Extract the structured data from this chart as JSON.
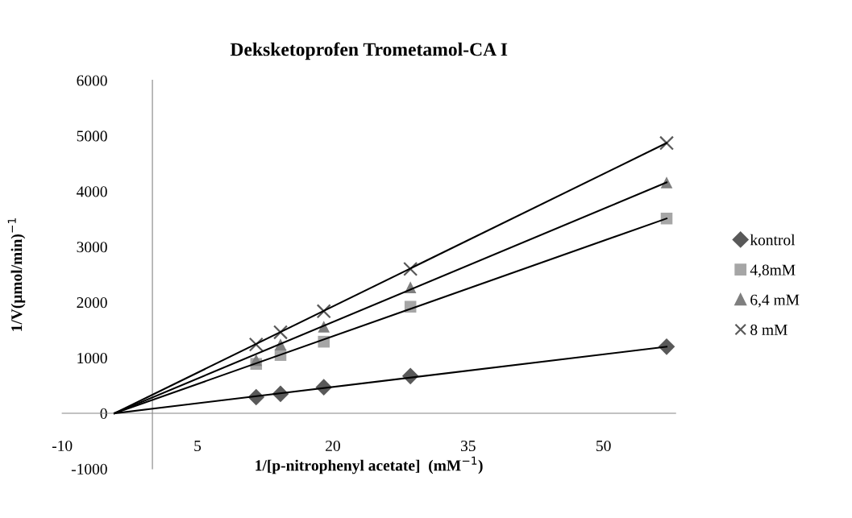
{
  "chart_data": {
    "type": "scatter",
    "title": "Deksketoprofen Trometamol-CA I",
    "xlabel": "1/[p-nitrophenyl acetate]  (mM$^{−1}$)",
    "ylabel": "1/V(μmol/min)$^{−1}$",
    "xlim": [
      -10,
      58
    ],
    "xticks": [
      -10,
      5,
      20,
      35,
      50
    ],
    "ylim": [
      -1000,
      6000
    ],
    "yticks": [
      -1000,
      0,
      1000,
      2000,
      3000,
      4000,
      5000,
      6000
    ],
    "grid": false,
    "legend": "right",
    "series": [
      {
        "name": "kontrol",
        "marker": "diamond",
        "color": "#595959",
        "x": [
          11.5,
          14.2,
          19.0,
          28.6,
          57.0
        ],
        "values": [
          290,
          350,
          470,
          670,
          1200
        ]
      },
      {
        "name": "4,8mM",
        "marker": "square",
        "color": "#a6a6a6",
        "x": [
          11.5,
          14.2,
          19.0,
          28.6,
          57.0
        ],
        "values": [
          890,
          1050,
          1290,
          1920,
          3510
        ]
      },
      {
        "name": "6,4 mM",
        "marker": "triangle",
        "color": "#7f7f7f",
        "x": [
          11.5,
          14.2,
          19.0,
          28.6,
          57.0
        ],
        "values": [
          960,
          1240,
          1560,
          2270,
          4160
        ]
      },
      {
        "name": "8 mM",
        "marker": "cross",
        "color": "#595959",
        "x": [
          11.5,
          14.2,
          19.0,
          28.6,
          57.0
        ],
        "values": [
          1240,
          1460,
          1840,
          2600,
          4870
        ]
      },
      {
        "type": "line",
        "marker": "none",
        "color": "#000000",
        "x": [
          -4.2,
          57.0
        ],
        "values": [
          0,
          1200
        ]
      },
      {
        "type": "line",
        "marker": "none",
        "color": "#000000",
        "x": [
          -4.2,
          57.0
        ],
        "values": [
          0,
          3510
        ]
      },
      {
        "type": "line",
        "marker": "none",
        "color": "#000000",
        "x": [
          -4.2,
          57.0
        ],
        "values": [
          0,
          4160
        ]
      },
      {
        "type": "line",
        "marker": "none",
        "color": "#000000",
        "x": [
          -4.2,
          57.0
        ],
        "values": [
          0,
          4870
        ]
      }
    ]
  }
}
